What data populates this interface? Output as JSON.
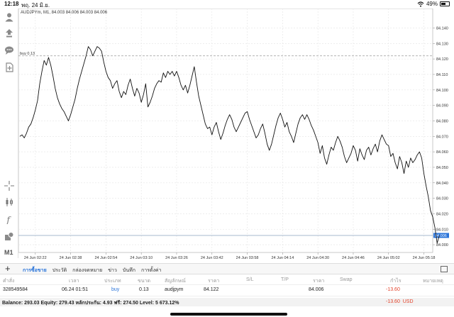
{
  "status": {
    "time": "12:18",
    "date": "พฤ. 24 มิ.ย.",
    "battery": "49%",
    "battery_level": 0.49
  },
  "chart": {
    "header": "AUDJPYm, M1, 84.003 84.006 84.003 84.006",
    "buy_label": "buy 0.13",
    "buy_price": 84.122,
    "current_price_label": "84.006",
    "current_price": 84.006
  },
  "chart_data": {
    "type": "line",
    "symbol": "AUDJPYm",
    "timeframe": "M1",
    "ylim": [
      83.995,
      84.148
    ],
    "y_ticks": [
      "84.140",
      "84.130",
      "84.120",
      "84.110",
      "84.100",
      "84.090",
      "84.080",
      "84.070",
      "84.060",
      "84.050",
      "84.040",
      "84.030",
      "84.020",
      "84.010",
      "84.000"
    ],
    "x_ticks": [
      "24 Jun 02:22",
      "24 Jun 02:38",
      "24 Jun 02:54",
      "24 Jun 03:10",
      "24 Jun 03:26",
      "24 Jun 03:42",
      "24 Jun 03:58",
      "24 Jun 04:14",
      "24 Jun 04:30",
      "24 Jun 04:46",
      "24 Jun 05:02",
      "24 Jun 05:18"
    ],
    "x_end": 188,
    "values": [
      84.07,
      84.071,
      84.069,
      84.072,
      84.076,
      84.078,
      84.082,
      84.087,
      84.093,
      84.104,
      84.112,
      84.119,
      84.116,
      84.121,
      84.116,
      84.109,
      84.101,
      84.095,
      84.091,
      84.088,
      84.086,
      84.083,
      84.08,
      84.084,
      84.089,
      84.094,
      84.101,
      84.107,
      84.112,
      84.117,
      84.122,
      84.128,
      84.126,
      84.122,
      84.125,
      84.128,
      84.127,
      84.125,
      84.118,
      84.112,
      84.108,
      84.106,
      84.101,
      84.104,
      84.106,
      84.099,
      84.095,
      84.099,
      84.097,
      84.103,
      84.107,
      84.101,
      84.096,
      84.101,
      84.098,
      84.092,
      84.097,
      84.104,
      84.089,
      84.092,
      84.096,
      84.101,
      84.104,
      84.106,
      84.105,
      84.111,
      84.108,
      84.112,
      84.11,
      84.112,
      84.109,
      84.112,
      84.108,
      84.103,
      84.1,
      84.103,
      84.098,
      84.103,
      84.109,
      84.115,
      84.105,
      84.096,
      84.09,
      84.084,
      84.078,
      84.075,
      84.076,
      84.071,
      84.076,
      84.079,
      84.073,
      84.068,
      84.072,
      84.077,
      84.081,
      84.084,
      84.081,
      84.076,
      84.073,
      84.076,
      84.079,
      84.082,
      84.085,
      84.086,
      84.081,
      84.077,
      84.073,
      84.069,
      84.071,
      84.075,
      84.078,
      84.072,
      84.065,
      84.061,
      84.065,
      84.071,
      84.077,
      84.082,
      84.085,
      84.081,
      84.076,
      84.079,
      84.073,
      84.07,
      84.066,
      84.072,
      84.078,
      84.082,
      84.084,
      84.081,
      84.084,
      84.081,
      84.077,
      84.074,
      84.07,
      84.066,
      84.059,
      84.064,
      84.056,
      84.052,
      84.058,
      84.063,
      84.061,
      84.066,
      84.07,
      84.067,
      84.063,
      84.057,
      84.053,
      84.056,
      84.059,
      84.064,
      84.061,
      84.054,
      84.062,
      84.058,
      84.055,
      84.061,
      84.063,
      84.058,
      84.062,
      84.065,
      84.06,
      84.067,
      84.071,
      84.068,
      84.065,
      84.064,
      84.057,
      84.059,
      84.053,
      84.049,
      84.057,
      84.053,
      84.046,
      84.054,
      84.05,
      84.056,
      84.053,
      84.055,
      84.058,
      84.06,
      84.056,
      84.046,
      84.038,
      84.031,
      84.022,
      84.018,
      84.011,
      84.001,
      84.006
    ]
  },
  "toolbar": {
    "tabs": [
      "การซื้อขาย",
      "ประวัติ",
      "กล่องจดหมาย",
      "ข่าว",
      "บันทึก",
      "การตั้งค่า"
    ]
  },
  "table": {
    "headers": [
      "คำสั่ง",
      "เวลา",
      "ประเภท",
      "ขนาด",
      "สัญลักษณ์",
      "ราคา",
      "S/L",
      "T/P",
      "ราคา",
      "Swap",
      "กำไร",
      "หมายเหตุ"
    ],
    "row": [
      "328549584",
      "06.24 01:51",
      "buy",
      "0.13",
      "audjpym",
      "84.122",
      "84.006",
      "-13.60"
    ]
  },
  "balance": {
    "text": "Balance: 293.03 Equity: 279.43 หลักประกัน: 4.93 ฟรี: 274.50 Level: 5 673.12%",
    "profit": "-13.60",
    "currency": "USD"
  },
  "colors": {
    "accent": "#2a74d9",
    "loss": "#e2422a",
    "line": "#111111"
  }
}
